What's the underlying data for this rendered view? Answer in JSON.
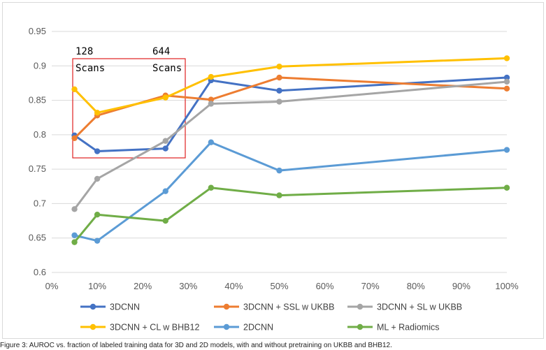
{
  "chart_data": {
    "type": "line",
    "title": "",
    "xlabel": "",
    "ylabel": "",
    "x": [
      0.05,
      0.1,
      0.25,
      0.35,
      0.5,
      1.0
    ],
    "xlim": [
      0,
      1.0
    ],
    "ylim": [
      0.6,
      0.95
    ],
    "x_ticks": [
      "0%",
      "10%",
      "20%",
      "30%",
      "40%",
      "50%",
      "60%",
      "70%",
      "80%",
      "90%",
      "100%"
    ],
    "y_ticks": [
      "0.6",
      "0.65",
      "0.7",
      "0.75",
      "0.8",
      "0.85",
      "0.9",
      "0.95"
    ],
    "grid": "horizontal",
    "legend_position": "bottom",
    "series": [
      {
        "name": "3DCNN",
        "color": "#4472C4",
        "values": [
          0.799,
          0.776,
          0.78,
          0.879,
          0.864,
          0.883
        ]
      },
      {
        "name": "3DCNN + SSL w UKBB",
        "color": "#ED7D31",
        "values": [
          0.795,
          0.828,
          0.857,
          0.851,
          0.883,
          0.867
        ]
      },
      {
        "name": "3DCNN + SL w UKBB",
        "color": "#A5A5A5",
        "values": [
          0.692,
          0.736,
          0.791,
          0.845,
          0.848,
          0.877
        ]
      },
      {
        "name": "3DCNN + CL w BHB12",
        "color": "#FFC000",
        "values": [
          0.866,
          0.832,
          0.854,
          0.884,
          0.899,
          0.911
        ]
      },
      {
        "name": "2DCNN",
        "color": "#5B9BD5",
        "values": [
          0.654,
          0.646,
          0.718,
          0.789,
          0.748,
          0.778
        ]
      },
      {
        "name": "ML + Radiomics",
        "color": "#70AD47",
        "values": [
          0.644,
          0.684,
          0.675,
          0.723,
          0.712,
          0.723
        ]
      }
    ],
    "annotations": [
      {
        "line1": "128",
        "line2": "Scans"
      },
      {
        "line1": "644",
        "line2": "Scans"
      }
    ],
    "highlight_box_color": "#E02020"
  },
  "caption": "Figure 3: AUROC vs. fraction of labeled training data for 3D and 2D models, with and without pretraining on UKBB and BHB12."
}
